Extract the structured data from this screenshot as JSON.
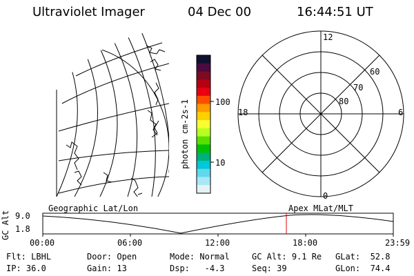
{
  "header": {
    "instrument": "Ultraviolet Imager",
    "date": "04 Dec 00",
    "time": "16:44:51 UT"
  },
  "colorbar": {
    "unit_label": "photon cm-2s-1",
    "ticks": [
      "100",
      "10"
    ],
    "colors": [
      "#101030",
      "#4a0b3f",
      "#7e0a1f",
      "#b40010",
      "#e80010",
      "#ff4d00",
      "#ff9a00",
      "#ffd000",
      "#f8ff30",
      "#b8ff20",
      "#58e000",
      "#00c000",
      "#00b078",
      "#00c8d8",
      "#60d8ee",
      "#a8e8f4",
      "#e4f2f6"
    ]
  },
  "polar_plot": {
    "labels": {
      "top": "12",
      "bottom": "0",
      "left": "18",
      "right": "6"
    },
    "latitude_labels": [
      "60",
      "70",
      "80"
    ]
  },
  "altitude_strip": {
    "left_label": "Geographic Lat/Lon",
    "right_label": "Apex MLat/MLT",
    "axis_title": "GC Alt",
    "y_ticks": [
      "9.0",
      "1.8"
    ],
    "x_ticks": [
      "00:00",
      "06:00",
      "12:00",
      "18:00",
      "23:59"
    ],
    "marker_color": "#e00000"
  },
  "status": {
    "row1": [
      {
        "label": "Flt:",
        "value": "LBHL"
      },
      {
        "label": "Door:",
        "value": "Open"
      },
      {
        "label": "Mode:",
        "value": "Normal"
      },
      {
        "label": "GC Alt:",
        "value": "9.1 Re"
      },
      {
        "label": "GLat:",
        "value": "52.8"
      }
    ],
    "row2": [
      {
        "label": "IP:",
        "value": "36.0"
      },
      {
        "label": "Gain:",
        "value": "13"
      },
      {
        "label": "Dsp:",
        "value": "-4.3"
      },
      {
        "label": "Seq:",
        "value": "39"
      },
      {
        "label": "GLon:",
        "value": "74.4"
      }
    ]
  }
}
